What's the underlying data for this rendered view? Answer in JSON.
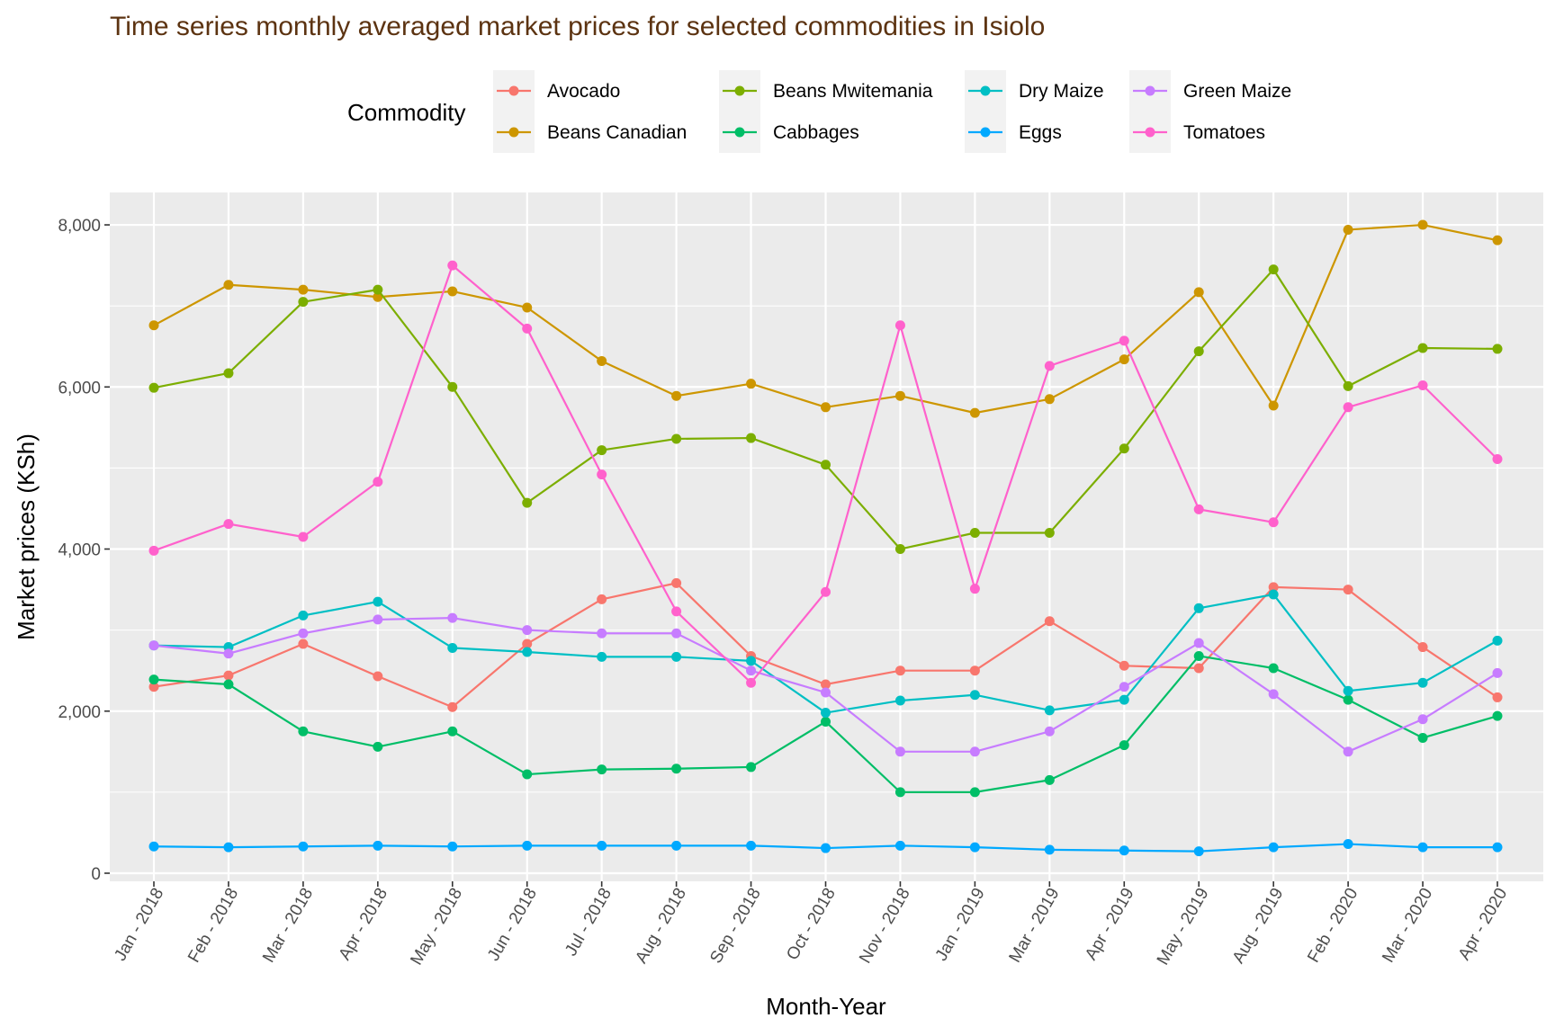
{
  "chart_data": {
    "type": "line",
    "title": "Time series monthly averaged market prices for selected commodities in Isiolo",
    "title_color": "#5C3311",
    "xlabel": "Month-Year",
    "ylabel": "Market prices (KSh)",
    "ylim": [
      -100,
      8400
    ],
    "yticks": [
      0,
      2000,
      4000,
      6000,
      8000
    ],
    "ytick_labels": [
      "0",
      "2,000",
      "4,000",
      "6,000",
      "8,000"
    ],
    "grid": true,
    "legend_title": "Commodity",
    "legend_position": "top",
    "categories": [
      "Jan - 2018",
      "Feb - 2018",
      "Mar - 2018",
      "Apr - 2018",
      "May - 2018",
      "Jun - 2018",
      "Jul - 2018",
      "Aug - 2018",
      "Sep - 2018",
      "Oct - 2018",
      "Nov - 2018",
      "Jan - 2019",
      "Mar - 2019",
      "Apr - 2019",
      "May - 2019",
      "Aug - 2019",
      "Feb - 2020",
      "Mar - 2020",
      "Apr - 2020"
    ],
    "series": [
      {
        "name": "Avocado",
        "color": "#F8766D",
        "values": [
          2300,
          2440,
          2830,
          2430,
          2050,
          2830,
          3380,
          3580,
          2680,
          2330,
          2500,
          2500,
          3110,
          2560,
          2530,
          3530,
          3500,
          2790,
          2170
        ]
      },
      {
        "name": "Beans Canadian",
        "color": "#CD9600",
        "values": [
          6760,
          7260,
          7200,
          7110,
          7180,
          6980,
          6320,
          5890,
          6040,
          5750,
          5890,
          5680,
          5850,
          6340,
          7170,
          5770,
          7940,
          8000,
          7810
        ]
      },
      {
        "name": "Beans Mwitemania",
        "color": "#7CAE00",
        "values": [
          5990,
          6170,
          7050,
          7200,
          6000,
          4570,
          5220,
          5360,
          5370,
          5040,
          4000,
          4200,
          4200,
          5240,
          6440,
          7450,
          6010,
          6480,
          6470
        ]
      },
      {
        "name": "Cabbages",
        "color": "#00BE67",
        "values": [
          2390,
          2330,
          1750,
          1560,
          1750,
          1220,
          1280,
          1290,
          1310,
          1870,
          1000,
          1000,
          1150,
          1580,
          2680,
          2530,
          2140,
          1670,
          1940
        ]
      },
      {
        "name": "Dry Maize",
        "color": "#00BFC4",
        "values": [
          2810,
          2790,
          3180,
          3350,
          2780,
          2730,
          2670,
          2670,
          2620,
          1980,
          2130,
          2200,
          2010,
          2140,
          3270,
          3440,
          2250,
          2350,
          2870
        ]
      },
      {
        "name": "Eggs",
        "color": "#00A9FF",
        "values": [
          330,
          320,
          330,
          340,
          330,
          340,
          340,
          340,
          340,
          310,
          340,
          320,
          290,
          280,
          270,
          320,
          360,
          320,
          320
        ]
      },
      {
        "name": "Green Maize",
        "color": "#C77CFF",
        "values": [
          2810,
          2710,
          2960,
          3130,
          3150,
          3000,
          2960,
          2960,
          2500,
          2230,
          1500,
          1500,
          1750,
          2300,
          2840,
          2210,
          1500,
          1900,
          2470
        ]
      },
      {
        "name": "Tomatoes",
        "color": "#FF61CC",
        "values": [
          3980,
          4310,
          4150,
          4830,
          7500,
          6720,
          4920,
          3230,
          2350,
          3470,
          6760,
          3510,
          6260,
          6570,
          4490,
          4330,
          5750,
          6020,
          5110
        ]
      }
    ]
  }
}
